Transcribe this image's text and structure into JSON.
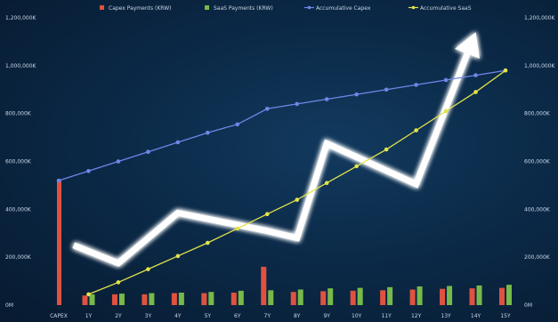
{
  "chart_data": {
    "type": "bar",
    "categories": [
      "CAPEX",
      "1Y",
      "2Y",
      "3Y",
      "4Y",
      "5Y",
      "6Y",
      "7Y",
      "8Y",
      "9Y",
      "10Y",
      "11Y",
      "12Y",
      "13Y",
      "14Y",
      "15Y"
    ],
    "ylim": [
      0,
      1200000
    ],
    "y_ticks": [
      "0M",
      "200,000K",
      "400,000K",
      "600,000K",
      "800,000K",
      "1,000,000K",
      "1,200,000K"
    ],
    "y_tick_values": [
      0,
      200000,
      400000,
      600000,
      800000,
      1000000,
      1200000
    ],
    "legend": {
      "position": "top",
      "items": [
        {
          "label": "Capex Payments (KRW)",
          "color": "#e0523f",
          "kind": "bar"
        },
        {
          "label": "SaaS Payments (KRW)",
          "color": "#77b94a",
          "kind": "bar"
        },
        {
          "label": "Accumulative Capex",
          "color": "#6f86e8",
          "kind": "line"
        },
        {
          "label": "Accumulative SaaS",
          "color": "#e2e34a",
          "kind": "line"
        }
      ]
    },
    "series": [
      {
        "name": "Capex Payments (KRW)",
        "type": "bar",
        "color": "#e0523f",
        "values": [
          520000,
          40000,
          45000,
          45000,
          50000,
          50000,
          52000,
          160000,
          55000,
          58000,
          60000,
          62000,
          65000,
          68000,
          70000,
          72000
        ]
      },
      {
        "name": "SaaS Payments (KRW)",
        "type": "bar",
        "color": "#77b94a",
        "values": [
          0,
          45000,
          48000,
          50000,
          52000,
          55000,
          60000,
          62000,
          65000,
          70000,
          72000,
          75000,
          78000,
          80000,
          82000,
          85000
        ]
      },
      {
        "name": "Accumulative Capex",
        "type": "line",
        "color": "#6f86e8",
        "values": [
          520000,
          560000,
          600000,
          640000,
          680000,
          720000,
          755000,
          820000,
          840000,
          860000,
          880000,
          900000,
          920000,
          940000,
          960000,
          980000
        ]
      },
      {
        "name": "Accumulative SaaS",
        "type": "line",
        "color": "#e2e34a",
        "values": [
          null,
          45000,
          95000,
          150000,
          205000,
          260000,
          320000,
          380000,
          440000,
          510000,
          580000,
          650000,
          730000,
          810000,
          890000,
          980000
        ]
      }
    ],
    "trend_arrow": {
      "description": "decorative glowing white zigzag arrow trending upward",
      "points": [
        [
          0.5,
          250000
        ],
        [
          2,
          175000
        ],
        [
          4,
          385000
        ],
        [
          7,
          310000
        ],
        [
          8,
          280000
        ],
        [
          9,
          675000
        ],
        [
          12,
          505000
        ],
        [
          14,
          1140000
        ]
      ]
    },
    "grid": false
  },
  "colors": {
    "background": "#0b2a48",
    "tick_text": "#c9d7e6",
    "arrow": "#ffffff"
  }
}
